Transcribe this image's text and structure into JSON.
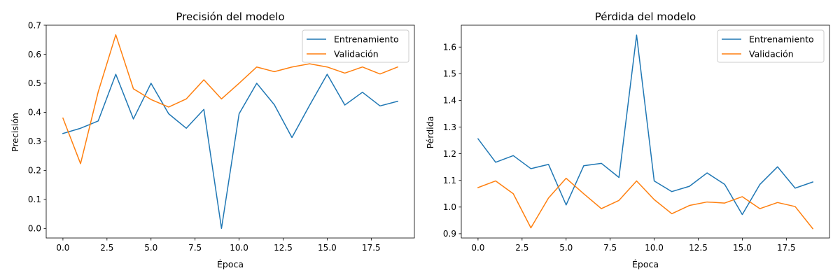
{
  "colors": {
    "train": "#1f77b4",
    "val": "#ff7f0e",
    "axes": "#000000",
    "legend_border": "#cccccc",
    "background": "#ffffff"
  },
  "chart_data": [
    {
      "type": "line",
      "title": "Precisión del modelo",
      "xlabel": "Época",
      "ylabel": "Precisión",
      "grid": false,
      "legend_position": "top-right",
      "xlim": [
        -0.95,
        19.95
      ],
      "ylim": [
        -0.033,
        0.7
      ],
      "xticks": [
        0.0,
        2.5,
        5.0,
        7.5,
        10.0,
        12.5,
        15.0,
        17.5
      ],
      "xtick_labels": [
        "0.0",
        "2.5",
        "5.0",
        "7.5",
        "10.0",
        "12.5",
        "15.0",
        "17.5"
      ],
      "yticks": [
        0.0,
        0.1,
        0.2,
        0.3,
        0.4,
        0.5,
        0.6,
        0.7
      ],
      "ytick_labels": [
        "0.0",
        "0.1",
        "0.2",
        "0.3",
        "0.4",
        "0.5",
        "0.6",
        "0.7"
      ],
      "x": [
        0,
        1,
        2,
        3,
        4,
        5,
        6,
        7,
        8,
        9,
        10,
        11,
        12,
        13,
        14,
        15,
        16,
        17,
        18,
        19
      ],
      "series": [
        {
          "name": "Entrenamiento",
          "color": "#1f77b4",
          "values": [
            0.327,
            0.345,
            0.37,
            0.531,
            0.377,
            0.5,
            0.395,
            0.345,
            0.41,
            0.0,
            0.395,
            0.5,
            0.426,
            0.313,
            0.424,
            0.531,
            0.425,
            0.469,
            0.422,
            0.438
          ]
        },
        {
          "name": "Validación",
          "color": "#ff7f0e",
          "values": [
            0.38,
            0.223,
            0.47,
            0.667,
            0.481,
            0.444,
            0.418,
            0.446,
            0.512,
            0.446,
            0.5,
            0.556,
            0.54,
            0.556,
            0.567,
            0.556,
            0.535,
            0.556,
            0.532,
            0.556
          ]
        }
      ]
    },
    {
      "type": "line",
      "title": "Pérdida del modelo",
      "xlabel": "Época",
      "ylabel": "Pérdida",
      "grid": false,
      "legend_position": "top-right",
      "xlim": [
        -0.95,
        19.95
      ],
      "ylim": [
        0.884,
        1.682
      ],
      "xticks": [
        0.0,
        2.5,
        5.0,
        7.5,
        10.0,
        12.5,
        15.0,
        17.5
      ],
      "xtick_labels": [
        "0.0",
        "2.5",
        "5.0",
        "7.5",
        "10.0",
        "12.5",
        "15.0",
        "17.5"
      ],
      "yticks": [
        0.9,
        1.0,
        1.1,
        1.2,
        1.3,
        1.4,
        1.5,
        1.6
      ],
      "ytick_labels": [
        "0.9",
        "1.0",
        "1.1",
        "1.2",
        "1.3",
        "1.4",
        "1.5",
        "1.6"
      ],
      "x": [
        0,
        1,
        2,
        3,
        4,
        5,
        6,
        7,
        8,
        9,
        10,
        11,
        12,
        13,
        14,
        15,
        16,
        17,
        18,
        19
      ],
      "series": [
        {
          "name": "Entrenamiento",
          "color": "#1f77b4",
          "values": [
            1.256,
            1.168,
            1.193,
            1.144,
            1.16,
            1.008,
            1.155,
            1.164,
            1.111,
            1.645,
            1.098,
            1.058,
            1.078,
            1.128,
            1.085,
            0.972,
            1.085,
            1.151,
            1.071,
            1.094
          ]
        },
        {
          "name": "Validación",
          "color": "#ff7f0e",
          "values": [
            1.073,
            1.098,
            1.05,
            0.922,
            1.034,
            1.108,
            1.05,
            0.994,
            1.025,
            1.098,
            1.028,
            0.975,
            1.006,
            1.019,
            1.015,
            1.039,
            0.994,
            1.017,
            1.002,
            0.919
          ]
        }
      ]
    }
  ]
}
